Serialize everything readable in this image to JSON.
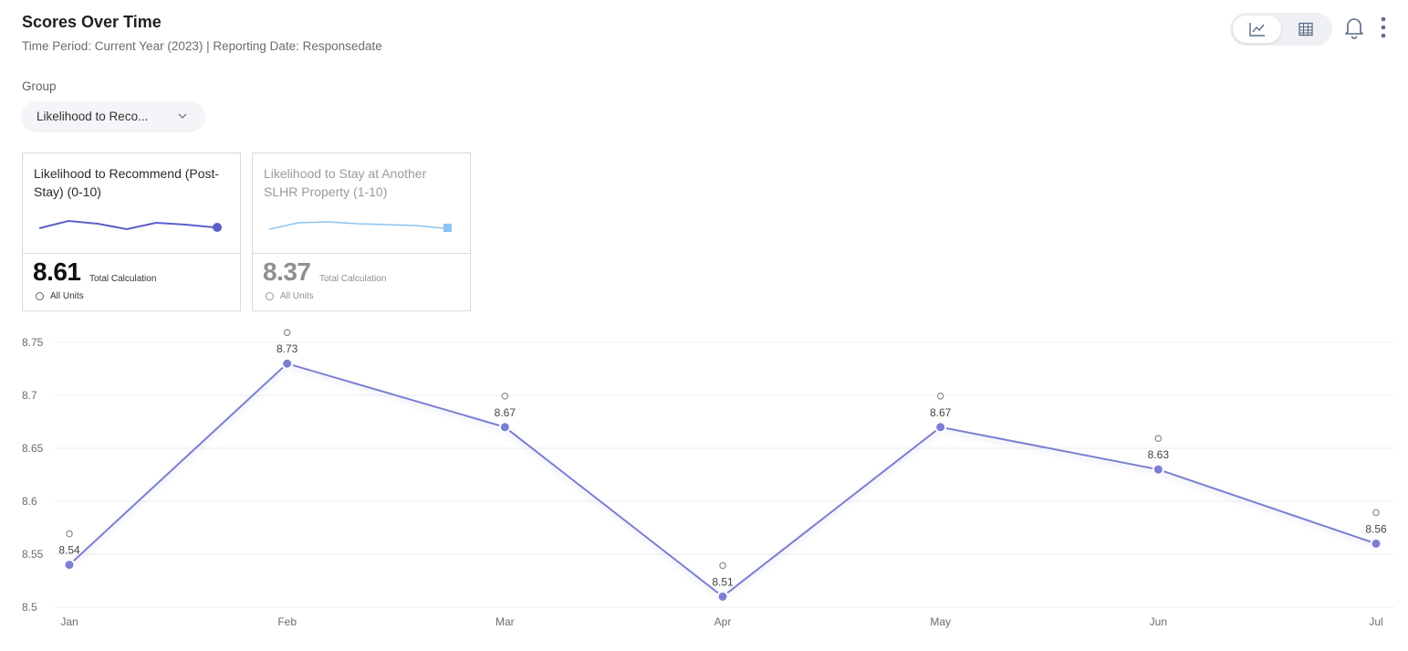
{
  "header": {
    "title": "Scores Over Time",
    "subtitle": "Time Period: Current Year (2023) | Reporting Date: Responsedate"
  },
  "toolbar": {
    "views": [
      {
        "icon": "line-chart-icon",
        "active": true
      },
      {
        "icon": "table-icon",
        "active": false
      }
    ],
    "icons": [
      "bell-icon",
      "more-vertical-icon"
    ]
  },
  "group": {
    "label": "Group",
    "selected": "Likelihood to Reco..."
  },
  "cards": [
    {
      "title": "Likelihood to Recommend (Post-Stay) (0-10)",
      "value": "8.61",
      "calc_label": "Total Calculation",
      "units_label": "All Units",
      "active": true,
      "color": "#5b5fc7"
    },
    {
      "title": "Likelihood to Stay at Another SLHR Property (1-10)",
      "value": "8.37",
      "calc_label": "Total Calculation",
      "units_label": "All Units",
      "active": false,
      "color": "#8cc4f2"
    }
  ],
  "chart_data": {
    "type": "line",
    "categories": [
      "Jan",
      "Feb",
      "Mar",
      "Apr",
      "May",
      "Jun",
      "Jul"
    ],
    "series": [
      {
        "values": [
          8.54,
          8.73,
          8.67,
          8.51,
          8.67,
          8.63,
          8.56
        ],
        "color": "#7a7fd1"
      }
    ],
    "ylim": [
      8.5,
      8.75
    ],
    "yticks": [
      "8.5",
      "8.55",
      "8.6",
      "8.65",
      "8.7",
      "8.75"
    ],
    "grid": true,
    "legend": "none"
  }
}
